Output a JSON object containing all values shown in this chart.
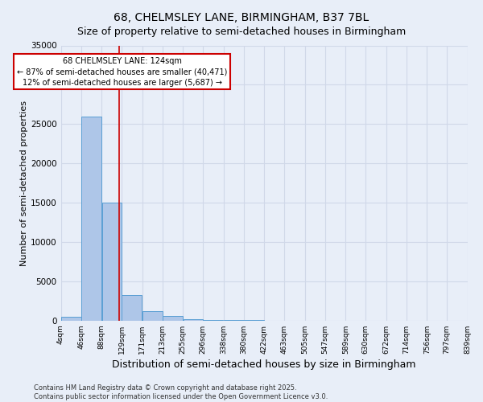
{
  "title": "68, CHELMSLEY LANE, BIRMINGHAM, B37 7BL",
  "subtitle": "Size of property relative to semi-detached houses in Birmingham",
  "xlabel": "Distribution of semi-detached houses by size in Birmingham",
  "ylabel": "Number of semi-detached properties",
  "annotation_title": "68 CHELMSLEY LANE: 124sqm",
  "annotation_line1": "← 87% of semi-detached houses are smaller (40,471)",
  "annotation_line2": "12% of semi-detached houses are larger (5,687) →",
  "property_size": 124,
  "bin_edges": [
    4,
    46,
    88,
    129,
    171,
    213,
    255,
    296,
    338,
    380,
    422,
    463,
    505,
    547,
    589,
    630,
    672,
    714,
    756,
    797,
    839
  ],
  "bar_heights": [
    500,
    26000,
    15000,
    3300,
    1200,
    600,
    200,
    100,
    60,
    40,
    25,
    15,
    10,
    8,
    5,
    4,
    3,
    2,
    2,
    1
  ],
  "bar_color": "#aec6e8",
  "bar_edge_color": "#5a9fd4",
  "vline_color": "#cc0000",
  "grid_color": "#d0d8e8",
  "background_color": "#e8eef8",
  "annotation_box_color": "#ffffff",
  "annotation_box_edge": "#cc0000",
  "footer": "Contains HM Land Registry data © Crown copyright and database right 2025.\nContains public sector information licensed under the Open Government Licence v3.0.",
  "ylim": [
    0,
    35000
  ],
  "title_fontsize": 10,
  "subtitle_fontsize": 9,
  "ylabel_fontsize": 8,
  "xlabel_fontsize": 9
}
